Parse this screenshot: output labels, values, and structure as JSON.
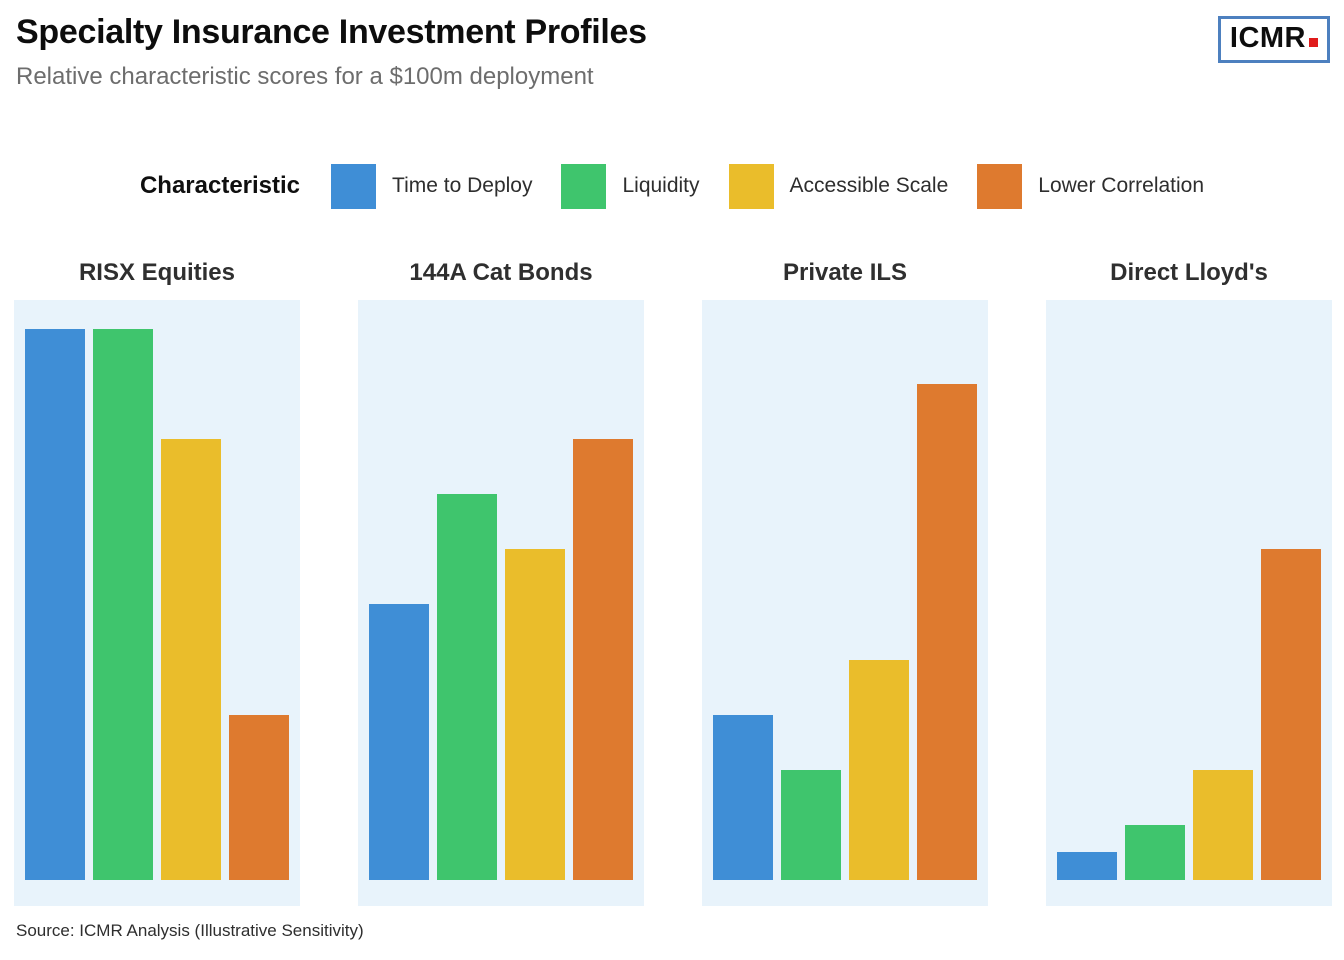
{
  "header": {
    "title": "Specialty Insurance Investment Profiles",
    "subtitle": "Relative characteristic scores for a $100m deployment",
    "logo_text": "ICMR"
  },
  "legend": {
    "title": "Characteristic",
    "items": [
      {
        "label": "Time to Deploy",
        "color": "#3f8ed6"
      },
      {
        "label": "Liquidity",
        "color": "#3fc56d"
      },
      {
        "label": "Accessible Scale",
        "color": "#eabd2b"
      },
      {
        "label": "Lower Correlation",
        "color": "#de7a2f"
      }
    ]
  },
  "chart_data": {
    "type": "bar",
    "title": "Specialty Insurance Investment Profiles",
    "subtitle": "Relative characteristic scores for a $100m deployment",
    "facets": [
      "RISX Equities",
      "144A Cat Bonds",
      "Private ILS",
      "Direct Lloyd's"
    ],
    "series_labels": [
      "Time to Deploy",
      "Liquidity",
      "Accessible Scale",
      "Lower Correlation"
    ],
    "series_colors": [
      "#3f8ed6",
      "#3fc56d",
      "#eabd2b",
      "#de7a2f"
    ],
    "series": [
      {
        "facet": "RISX Equities",
        "values": [
          10,
          10,
          8,
          3
        ]
      },
      {
        "facet": "144A Cat Bonds",
        "values": [
          5,
          7,
          6,
          8
        ]
      },
      {
        "facet": "Private ILS",
        "values": [
          3,
          2,
          4,
          9
        ]
      },
      {
        "facet": "Direct Lloyd's",
        "values": [
          0.5,
          1,
          2,
          6
        ]
      }
    ],
    "ylim": [
      0,
      10
    ],
    "grid": false,
    "axis_labels_shown": false,
    "legend_position": "top",
    "panel_background": "#e8f3fb"
  },
  "footer": {
    "source": "Source: ICMR Analysis (Illustrative Sensitivity)"
  }
}
